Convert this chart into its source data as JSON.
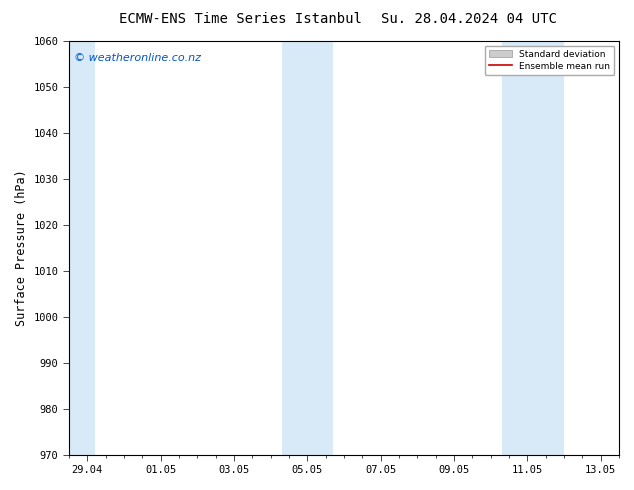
{
  "title_left": "ECMW-ENS Time Series Istanbul",
  "title_right": "Su. 28.04.2024 04 UTC",
  "ylabel": "Surface Pressure (hPa)",
  "ylim": [
    970,
    1060
  ],
  "yticks": [
    970,
    980,
    990,
    1000,
    1010,
    1020,
    1030,
    1040,
    1050,
    1060
  ],
  "xtick_labels": [
    "29.04",
    "01.05",
    "03.05",
    "05.05",
    "07.05",
    "09.05",
    "11.05",
    "13.05"
  ],
  "xtick_positions": [
    0.5,
    2.5,
    4.5,
    6.5,
    8.5,
    10.5,
    12.5,
    14.5
  ],
  "xlim": [
    0,
    15
  ],
  "watermark": "© weatheronline.co.nz",
  "watermark_color": "#0055cc",
  "bg_color": "#ffffff",
  "plot_bg_color": "#ffffff",
  "shaded_bands": [
    {
      "x_start": 0,
      "x_end": 0.7
    },
    {
      "x_start": 5.8,
      "x_end": 6.5
    },
    {
      "x_start": 6.5,
      "x_end": 7.2
    },
    {
      "x_start": 11.8,
      "x_end": 12.5
    },
    {
      "x_start": 12.5,
      "x_end": 13.5
    }
  ],
  "shaded_band_color": "#d8eaf8",
  "legend_std_color": "#cccccc",
  "legend_mean_color": "#cc0000",
  "title_fontsize": 10,
  "tick_fontsize": 7.5,
  "ylabel_fontsize": 8.5,
  "watermark_fontsize": 8
}
